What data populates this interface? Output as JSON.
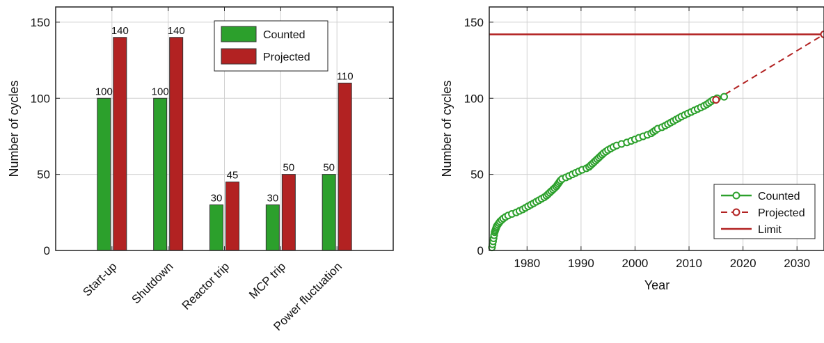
{
  "chart_data": [
    {
      "type": "bar",
      "categories": [
        "Start-up",
        "Shutdown",
        "Reactor trip",
        "MCP trip",
        "Power fluctuation"
      ],
      "series": [
        {
          "name": "Counted",
          "values": [
            100,
            100,
            30,
            30,
            50
          ],
          "color": "#2ca02c"
        },
        {
          "name": "Projected",
          "values": [
            140,
            140,
            45,
            50,
            110
          ],
          "color": "#b22222"
        }
      ],
      "data_labels": [
        [
          "100",
          "100",
          "30",
          "30",
          "50"
        ],
        [
          "140",
          "140",
          "45",
          "50",
          "110"
        ]
      ],
      "ylabel": "Number of cycles",
      "xlabel": "",
      "ylim": [
        0,
        160
      ],
      "yticks": [
        "0",
        "50",
        "100",
        "150"
      ],
      "grid": true,
      "legend": "top-right"
    },
    {
      "type": "line",
      "series": [
        {
          "name": "Counted",
          "style": "solid line with circle markers",
          "color": "#2ca02c",
          "points": [
            [
              1973.5,
              2
            ],
            [
              1973.6,
              4
            ],
            [
              1973.7,
              6
            ],
            [
              1973.8,
              8
            ],
            [
              1973.9,
              10
            ],
            [
              1974.0,
              12
            ],
            [
              1974.1,
              13
            ],
            [
              1974.2,
              14
            ],
            [
              1974.3,
              15
            ],
            [
              1974.4,
              16
            ],
            [
              1974.6,
              17
            ],
            [
              1974.8,
              18
            ],
            [
              1975.0,
              19
            ],
            [
              1975.3,
              20
            ],
            [
              1975.6,
              21
            ],
            [
              1976.0,
              22
            ],
            [
              1976.5,
              23
            ],
            [
              1977.2,
              24
            ],
            [
              1978.0,
              25
            ],
            [
              1978.6,
              26
            ],
            [
              1979.2,
              27
            ],
            [
              1979.7,
              28
            ],
            [
              1980.2,
              29
            ],
            [
              1980.7,
              30
            ],
            [
              1981.2,
              31
            ],
            [
              1981.7,
              32
            ],
            [
              1982.2,
              33
            ],
            [
              1982.7,
              34
            ],
            [
              1983.2,
              35
            ],
            [
              1983.6,
              36
            ],
            [
              1983.9,
              37
            ],
            [
              1984.2,
              38
            ],
            [
              1984.5,
              39
            ],
            [
              1984.8,
              40
            ],
            [
              1985.1,
              41
            ],
            [
              1985.4,
              42
            ],
            [
              1985.6,
              43
            ],
            [
              1985.8,
              44
            ],
            [
              1986.0,
              45
            ],
            [
              1986.2,
              46
            ],
            [
              1986.5,
              47
            ],
            [
              1987.2,
              48
            ],
            [
              1987.8,
              49
            ],
            [
              1988.4,
              50
            ],
            [
              1989.0,
              51
            ],
            [
              1989.6,
              52
            ],
            [
              1990.2,
              53
            ],
            [
              1991.0,
              54
            ],
            [
              1991.5,
              55
            ],
            [
              1991.8,
              56
            ],
            [
              1992.1,
              57
            ],
            [
              1992.4,
              58
            ],
            [
              1992.7,
              59
            ],
            [
              1993.0,
              60
            ],
            [
              1993.3,
              61
            ],
            [
              1993.6,
              62
            ],
            [
              1993.9,
              63
            ],
            [
              1994.2,
              64
            ],
            [
              1994.6,
              65
            ],
            [
              1995.0,
              66
            ],
            [
              1995.5,
              67
            ],
            [
              1996.0,
              68
            ],
            [
              1996.6,
              69
            ],
            [
              1997.5,
              70
            ],
            [
              1998.5,
              71
            ],
            [
              1999.3,
              72
            ],
            [
              2000.0,
              73
            ],
            [
              2000.7,
              74
            ],
            [
              2001.5,
              75
            ],
            [
              2002.3,
              76
            ],
            [
              2003.0,
              77
            ],
            [
              2003.4,
              78
            ],
            [
              2003.8,
              79
            ],
            [
              2004.2,
              80
            ],
            [
              2005.0,
              81
            ],
            [
              2005.6,
              82
            ],
            [
              2006.1,
              83
            ],
            [
              2006.6,
              84
            ],
            [
              2007.1,
              85
            ],
            [
              2007.6,
              86
            ],
            [
              2008.1,
              87
            ],
            [
              2008.6,
              88
            ],
            [
              2009.2,
              89
            ],
            [
              2009.8,
              90
            ],
            [
              2010.4,
              91
            ],
            [
              2011.0,
              92
            ],
            [
              2011.6,
              93
            ],
            [
              2012.2,
              94
            ],
            [
              2012.8,
              95
            ],
            [
              2013.3,
              96
            ],
            [
              2013.7,
              97
            ],
            [
              2014.1,
              98
            ],
            [
              2014.5,
              99
            ],
            [
              2015.2,
              100
            ],
            [
              2016.5,
              101
            ]
          ]
        },
        {
          "name": "Projected",
          "style": "dashed line with circle markers",
          "color": "#b22222",
          "points": [
            [
              2015,
              99
            ],
            [
              2035,
              142
            ]
          ]
        },
        {
          "name": "Limit",
          "style": "solid line",
          "color": "#b22222",
          "points": [
            [
              1973,
              142
            ],
            [
              2035,
              142
            ]
          ]
        }
      ],
      "xlabel": "Year",
      "ylabel": "Number of cycles",
      "xlim": [
        1973,
        2035
      ],
      "ylim": [
        0,
        160
      ],
      "xticks": [
        "1980",
        "1990",
        "2000",
        "2010",
        "2020",
        "2030"
      ],
      "yticks": [
        "0",
        "50",
        "100",
        "150"
      ],
      "grid": true,
      "legend": "bottom-right"
    }
  ]
}
